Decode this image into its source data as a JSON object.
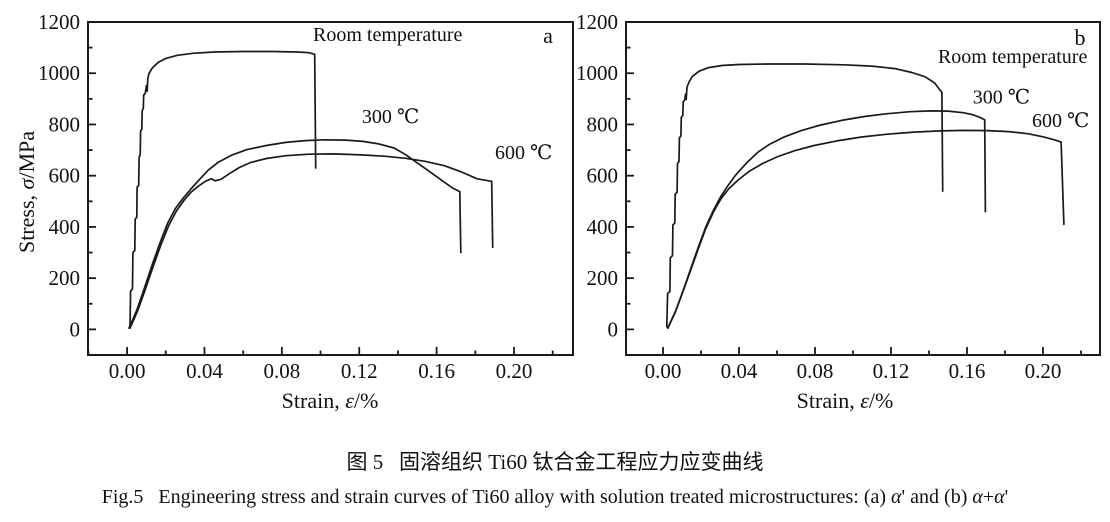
{
  "figure": {
    "caption_cn": "图 5   固溶组织 Ti60 钛合金工程应力应变曲线",
    "caption_en": "Fig.5   Engineering stress and strain curves of Ti60 alloy with solution treated microstructures: (a) α' and (b) α+α'"
  },
  "style": {
    "line_color": "#1a1a1a",
    "frame_color": "#1a1a1a",
    "background": "#ffffff"
  },
  "chart_data": [
    {
      "id": "a",
      "type": "line",
      "panel_label": "a",
      "xlabel": "Strain, ε/%",
      "ylabel": "Stress, σ/MPa",
      "xlim": [
        -0.0202,
        0.2305
      ],
      "ylim": [
        -100,
        1200
      ],
      "xticks": [
        0.0,
        0.04,
        0.08,
        0.12,
        0.16,
        0.2
      ],
      "xtick_labels": [
        "0.00",
        "0.04",
        "0.08",
        "0.12",
        "0.16",
        "0.20"
      ],
      "yticks": [
        0,
        200,
        400,
        600,
        800,
        1000,
        1200
      ],
      "ytick_labels": [
        "0",
        "200",
        "400",
        "600",
        "800",
        "1000",
        "1200"
      ],
      "x_minor_step": 0.02,
      "y_minor_step": 100,
      "grid": false,
      "annotations": [
        {
          "text": "Room temperature",
          "x": 0.0961,
          "y": 1149,
          "anchor": "start",
          "size": 20
        },
        {
          "text": "a",
          "x": 0.2176,
          "y": 1149,
          "anchor": "middle",
          "size": 22
        },
        {
          "text": "300 ℃",
          "x": 0.1214,
          "y": 829,
          "anchor": "start",
          "size": 20
        },
        {
          "text": "600 ℃",
          "x": 0.1902,
          "y": 689,
          "anchor": "start",
          "size": 20
        }
      ],
      "series": [
        {
          "name": "room-temperature",
          "label": "Room temperature",
          "points": [
            [
              0.0015,
              10
            ],
            [
              0.0018,
              150
            ],
            [
              0.0028,
              158
            ],
            [
              0.003,
              300
            ],
            [
              0.004,
              308
            ],
            [
              0.0042,
              430
            ],
            [
              0.005,
              438
            ],
            [
              0.0052,
              555
            ],
            [
              0.006,
              562
            ],
            [
              0.0062,
              672
            ],
            [
              0.0068,
              680
            ],
            [
              0.007,
              775
            ],
            [
              0.0076,
              782
            ],
            [
              0.0078,
              855
            ],
            [
              0.0084,
              862
            ],
            [
              0.0086,
              915
            ],
            [
              0.0094,
              922
            ],
            [
              0.01,
              952
            ],
            [
              0.0104,
              930
            ],
            [
              0.0107,
              980
            ],
            [
              0.0113,
              998
            ],
            [
              0.013,
              1020
            ],
            [
              0.016,
              1042
            ],
            [
              0.02,
              1058
            ],
            [
              0.026,
              1070
            ],
            [
              0.034,
              1078
            ],
            [
              0.045,
              1083
            ],
            [
              0.06,
              1085
            ],
            [
              0.075,
              1085
            ],
            [
              0.088,
              1083
            ],
            [
              0.094,
              1080
            ],
            [
              0.097,
              1074
            ],
            [
              0.0975,
              630
            ]
          ]
        },
        {
          "name": "300c",
          "label": "300 ℃",
          "points": [
            [
              0.001,
              5
            ],
            [
              0.005,
              75
            ],
            [
              0.009,
              162
            ],
            [
              0.013,
              252
            ],
            [
              0.017,
              338
            ],
            [
              0.021,
              415
            ],
            [
              0.025,
              472
            ],
            [
              0.029,
              512
            ],
            [
              0.033,
              548
            ],
            [
              0.037,
              582
            ],
            [
              0.042,
              622
            ],
            [
              0.047,
              652
            ],
            [
              0.054,
              680
            ],
            [
              0.062,
              702
            ],
            [
              0.072,
              718
            ],
            [
              0.082,
              730
            ],
            [
              0.092,
              737
            ],
            [
              0.102,
              740
            ],
            [
              0.113,
              739
            ],
            [
              0.122,
              734
            ],
            [
              0.13,
              724
            ],
            [
              0.138,
              708
            ],
            [
              0.144,
              682
            ],
            [
              0.15,
              650
            ],
            [
              0.157,
              613
            ],
            [
              0.163,
              580
            ],
            [
              0.168,
              553
            ],
            [
              0.172,
              538
            ],
            [
              0.1725,
              300
            ]
          ]
        },
        {
          "name": "600c",
          "label": "600 ℃",
          "points": [
            [
              0.0015,
              5
            ],
            [
              0.0055,
              73
            ],
            [
              0.0095,
              158
            ],
            [
              0.0135,
              246
            ],
            [
              0.0175,
              330
            ],
            [
              0.0215,
              405
            ],
            [
              0.0255,
              462
            ],
            [
              0.0295,
              504
            ],
            [
              0.033,
              535
            ],
            [
              0.037,
              560
            ],
            [
              0.0405,
              578
            ],
            [
              0.0435,
              588
            ],
            [
              0.0455,
              580
            ],
            [
              0.0485,
              586
            ],
            [
              0.053,
              608
            ],
            [
              0.058,
              632
            ],
            [
              0.064,
              652
            ],
            [
              0.072,
              667
            ],
            [
              0.082,
              678
            ],
            [
              0.094,
              684
            ],
            [
              0.107,
              685
            ],
            [
              0.121,
              681
            ],
            [
              0.133,
              676
            ],
            [
              0.144,
              668
            ],
            [
              0.154,
              656
            ],
            [
              0.164,
              639
            ],
            [
              0.173,
              614
            ],
            [
              0.181,
              588
            ],
            [
              0.1885,
              578
            ],
            [
              0.189,
              320
            ]
          ]
        }
      ]
    },
    {
      "id": "b",
      "type": "line",
      "panel_label": "b",
      "xlabel": "Strain, ε/%",
      "ylabel": "",
      "xlim": [
        -0.0195,
        0.23
      ],
      "ylim": [
        -100,
        1200
      ],
      "xticks": [
        0.0,
        0.04,
        0.08,
        0.12,
        0.16,
        0.2
      ],
      "xtick_labels": [
        "0.00",
        "0.04",
        "0.08",
        "0.12",
        "0.16",
        "0.20"
      ],
      "yticks": [
        0,
        200,
        400,
        600,
        800,
        1000,
        1200
      ],
      "ytick_labels": [
        "0",
        "200",
        "400",
        "600",
        "800",
        "1000",
        "1200"
      ],
      "x_minor_step": 0.02,
      "y_minor_step": 100,
      "grid": false,
      "annotations": [
        {
          "text": "Room temperature",
          "x": 0.1447,
          "y": 1063,
          "anchor": "start",
          "size": 20
        },
        {
          "text": "b",
          "x": 0.2195,
          "y": 1141,
          "anchor": "middle",
          "size": 22
        },
        {
          "text": "300 ℃",
          "x": 0.163,
          "y": 905,
          "anchor": "start",
          "size": 20
        },
        {
          "text": "600 ℃",
          "x": 0.1942,
          "y": 813,
          "anchor": "start",
          "size": 20
        }
      ],
      "series": [
        {
          "name": "room-temperature",
          "label": "Room temperature",
          "points": [
            [
              0.002,
              10
            ],
            [
              0.0024,
              140
            ],
            [
              0.0036,
              148
            ],
            [
              0.0038,
              280
            ],
            [
              0.005,
              288
            ],
            [
              0.0052,
              408
            ],
            [
              0.0062,
              415
            ],
            [
              0.0064,
              528
            ],
            [
              0.0074,
              535
            ],
            [
              0.0076,
              648
            ],
            [
              0.0084,
              655
            ],
            [
              0.0086,
              748
            ],
            [
              0.0094,
              755
            ],
            [
              0.0096,
              828
            ],
            [
              0.0104,
              835
            ],
            [
              0.0106,
              888
            ],
            [
              0.0114,
              895
            ],
            [
              0.0118,
              918
            ],
            [
              0.0122,
              898
            ],
            [
              0.0126,
              946
            ],
            [
              0.0138,
              968
            ],
            [
              0.0155,
              988
            ],
            [
              0.019,
              1008
            ],
            [
              0.024,
              1022
            ],
            [
              0.031,
              1030
            ],
            [
              0.04,
              1034
            ],
            [
              0.055,
              1036
            ],
            [
              0.075,
              1036
            ],
            [
              0.095,
              1033
            ],
            [
              0.11,
              1028
            ],
            [
              0.122,
              1018
            ],
            [
              0.131,
              1003
            ],
            [
              0.138,
              986
            ],
            [
              0.143,
              962
            ],
            [
              0.146,
              932
            ],
            [
              0.1468,
              925
            ],
            [
              0.1472,
              540
            ]
          ]
        },
        {
          "name": "300c",
          "label": "300 ℃",
          "points": [
            [
              0.0025,
              5
            ],
            [
              0.0065,
              70
            ],
            [
              0.0105,
              150
            ],
            [
              0.0145,
              235
            ],
            [
              0.0185,
              320
            ],
            [
              0.0225,
              400
            ],
            [
              0.0265,
              465
            ],
            [
              0.0305,
              520
            ],
            [
              0.0345,
              565
            ],
            [
              0.0385,
              605
            ],
            [
              0.044,
              650
            ],
            [
              0.05,
              692
            ],
            [
              0.056,
              722
            ],
            [
              0.064,
              752
            ],
            [
              0.073,
              777
            ],
            [
              0.083,
              798
            ],
            [
              0.094,
              816
            ],
            [
              0.106,
              831
            ],
            [
              0.118,
              842
            ],
            [
              0.13,
              850
            ],
            [
              0.141,
              853
            ],
            [
              0.15,
              852
            ],
            [
              0.158,
              846
            ],
            [
              0.163,
              838
            ],
            [
              0.167,
              827
            ],
            [
              0.1693,
              818
            ],
            [
              0.1697,
              460
            ]
          ]
        },
        {
          "name": "600c",
          "label": "600 ℃",
          "points": [
            [
              0.0025,
              5
            ],
            [
              0.0065,
              68
            ],
            [
              0.0105,
              148
            ],
            [
              0.0145,
              230
            ],
            [
              0.0185,
              314
            ],
            [
              0.0225,
              394
            ],
            [
              0.0265,
              458
            ],
            [
              0.0305,
              510
            ],
            [
              0.0345,
              548
            ],
            [
              0.0395,
              583
            ],
            [
              0.0455,
              618
            ],
            [
              0.0525,
              648
            ],
            [
              0.0605,
              675
            ],
            [
              0.0695,
              698
            ],
            [
              0.0795,
              718
            ],
            [
              0.0915,
              736
            ],
            [
              0.1045,
              751
            ],
            [
              0.118,
              762
            ],
            [
              0.132,
              770
            ],
            [
              0.146,
              775
            ],
            [
              0.159,
              777
            ],
            [
              0.171,
              776
            ],
            [
              0.182,
              772
            ],
            [
              0.192,
              764
            ],
            [
              0.2,
              752
            ],
            [
              0.206,
              740
            ],
            [
              0.2095,
              731
            ],
            [
              0.211,
              410
            ]
          ]
        }
      ]
    }
  ]
}
